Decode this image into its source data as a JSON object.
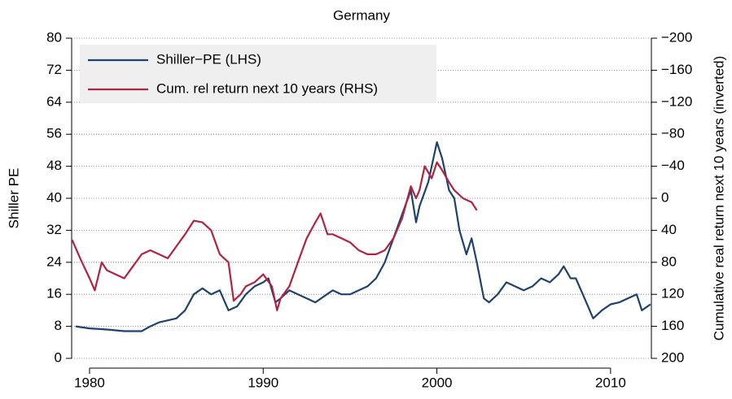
{
  "chart_data": {
    "type": "line",
    "title": "Germany",
    "ylabel": "Shiller PE",
    "y2label": "Cumulative real return next 10 years (inverted)",
    "xlim": [
      1978.97,
      2012.35
    ],
    "xticks": [
      1980,
      1990,
      2000,
      2010
    ],
    "ylim": [
      0,
      80
    ],
    "yticks": [
      0,
      8,
      16,
      24,
      32,
      40,
      48,
      56,
      64,
      72,
      80
    ],
    "y2lim": [
      200,
      -200
    ],
    "y2ticks": [
      {
        "value": -200,
        "label": "−200"
      },
      {
        "value": -160,
        "label": "−160"
      },
      {
        "value": -120,
        "label": "−120"
      },
      {
        "value": -80,
        "label": "−80"
      },
      {
        "value": -40,
        "label": "−40"
      },
      0,
      40,
      80,
      120,
      160,
      200
    ],
    "grid": true,
    "legend": "top-left",
    "series": [
      {
        "name": "Shiller−PE (LHS)",
        "color": "#1d426f",
        "x": [
          1979.2,
          1980,
          1981,
          1982,
          1983,
          1983.5,
          1984,
          1985,
          1985.5,
          1986,
          1986.5,
          1987,
          1987.5,
          1988,
          1988.5,
          1989,
          1989.5,
          1990,
          1990.3,
          1990.7,
          1991,
          1991.5,
          1992,
          1992.5,
          1993,
          1993.5,
          1994,
          1994.5,
          1995,
          1995.5,
          1996,
          1996.5,
          1997,
          1997.5,
          1998,
          1998.5,
          1998.8,
          1999,
          1999.5,
          2000,
          2000.3,
          2000.7,
          2001,
          2001.3,
          2001.7,
          2002,
          2002.3,
          2002.7,
          2003,
          2003.5,
          2004,
          2004.5,
          2005,
          2005.5,
          2006,
          2006.5,
          2007,
          2007.3,
          2007.7,
          2008,
          2008.5,
          2009,
          2009.5,
          2010,
          2010.5,
          2011,
          2011.5,
          2011.8,
          2012.3
        ],
        "values": [
          8,
          7.5,
          7.2,
          6.8,
          6.8,
          8,
          9,
          10,
          12,
          16,
          17.5,
          16,
          17,
          12,
          13,
          16,
          18,
          19,
          20,
          14,
          15,
          17,
          16,
          15,
          14,
          15.5,
          17,
          16,
          16,
          17,
          18,
          20,
          24,
          30,
          36,
          42,
          34,
          38,
          44,
          54,
          50,
          42,
          40,
          32,
          26,
          30,
          24,
          15,
          14,
          16,
          19,
          18,
          17,
          18,
          20,
          19,
          21,
          23,
          20,
          20,
          15,
          10,
          12,
          13.5,
          14,
          15,
          16,
          12,
          13.5
        ]
      },
      {
        "name": "Cum. rel return next 10 years (RHS)",
        "color": "#b22340",
        "axis": "y2",
        "x": [
          1979,
          1979.5,
          1980,
          1980.3,
          1980.7,
          1981,
          1981.5,
          1982,
          1982.5,
          1983,
          1983.5,
          1984,
          1984.5,
          1985,
          1985.5,
          1986,
          1986.5,
          1987,
          1987.5,
          1988,
          1988.3,
          1988.7,
          1989,
          1989.5,
          1990,
          1990.5,
          1990.8,
          1991,
          1991.5,
          1992,
          1992.5,
          1993,
          1993.3,
          1993.7,
          1994,
          1994.5,
          1995,
          1995.5,
          1996,
          1996.5,
          1997,
          1997.5,
          1998,
          1998.5,
          1998.8,
          1999,
          1999.3,
          1999.7,
          2000,
          2000.3,
          2000.7,
          2001,
          2001.5,
          2002,
          2002.3
        ],
        "values": [
          52,
          77,
          100,
          115,
          80,
          90,
          95,
          100,
          85,
          70,
          65,
          70,
          75,
          60,
          45,
          28,
          30,
          40,
          70,
          80,
          128,
          120,
          110,
          105,
          95,
          110,
          140,
          125,
          110,
          80,
          50,
          30,
          19,
          45,
          45,
          50,
          55,
          65,
          70,
          70,
          65,
          50,
          25,
          -15,
          0,
          -10,
          -40,
          -25,
          -45,
          -35,
          -20,
          -10,
          0,
          5,
          15
        ]
      }
    ]
  }
}
